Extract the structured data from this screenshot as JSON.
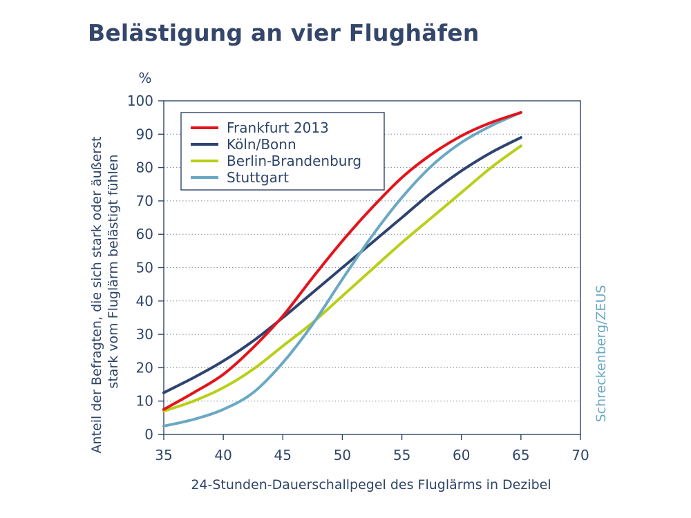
{
  "title": "Belästigung an vier Flughäfen",
  "credit": "Schreckenberg/ZEUS",
  "chart_data": {
    "type": "line",
    "title": "Belästigung an vier Flughäfen",
    "xlabel": "24-Stunden-Dauerschallpegel des Fluglärms in Dezibel",
    "ylabel": [
      "Anteil der Befragten, die sich stark oder äußerst",
      "stark vom Fluglärm belästigt fühlen"
    ],
    "yunit": "%",
    "xlim": [
      35,
      70
    ],
    "ylim": [
      0,
      100
    ],
    "xticks": [
      "35",
      "40",
      "45",
      "50",
      "55",
      "60",
      "65",
      "70"
    ],
    "yticks": [
      "0",
      "10",
      "20",
      "30",
      "40",
      "50",
      "60",
      "70",
      "80",
      "90",
      "100"
    ],
    "grid": "horizontal dotted",
    "legend_position": "top-left",
    "series": [
      {
        "name": "Frankfurt 2013",
        "color": "#e3141c",
        "points": [
          [
            35,
            7.5
          ],
          [
            37.5,
            12.5
          ],
          [
            40,
            18
          ],
          [
            42.5,
            26
          ],
          [
            45,
            35.5
          ],
          [
            47.5,
            47
          ],
          [
            50,
            58
          ],
          [
            52.5,
            68
          ],
          [
            55,
            77
          ],
          [
            57.5,
            84
          ],
          [
            60,
            89.5
          ],
          [
            62.5,
            93.5
          ],
          [
            65,
            96.5
          ]
        ]
      },
      {
        "name": "Köln/Bonn",
        "color": "#2f4370",
        "points": [
          [
            35,
            12.5
          ],
          [
            37.5,
            17
          ],
          [
            40,
            22
          ],
          [
            42.5,
            28
          ],
          [
            45,
            35
          ],
          [
            47.5,
            42.5
          ],
          [
            50,
            50
          ],
          [
            52.5,
            57.5
          ],
          [
            55,
            65
          ],
          [
            57.5,
            72.5
          ],
          [
            60,
            79
          ],
          [
            62.5,
            84.5
          ],
          [
            65,
            89
          ]
        ]
      },
      {
        "name": "Berlin-Brandenburg",
        "color": "#b9cf18",
        "points": [
          [
            35,
            7
          ],
          [
            37.5,
            10
          ],
          [
            40,
            14
          ],
          [
            42.5,
            19.5
          ],
          [
            45,
            26.5
          ],
          [
            47.5,
            33.5
          ],
          [
            50,
            41.5
          ],
          [
            52.5,
            49.5
          ],
          [
            55,
            57.5
          ],
          [
            57.5,
            65
          ],
          [
            60,
            72.5
          ],
          [
            62.5,
            80
          ],
          [
            65,
            86.5
          ]
        ]
      },
      {
        "name": "Stuttgart",
        "color": "#6aa8c4",
        "points": [
          [
            35,
            2.5
          ],
          [
            37.5,
            4.5
          ],
          [
            40,
            7.5
          ],
          [
            42.5,
            12.5
          ],
          [
            45,
            21.5
          ],
          [
            47.5,
            33
          ],
          [
            50,
            46.5
          ],
          [
            52.5,
            59.5
          ],
          [
            55,
            71
          ],
          [
            57.5,
            80.5
          ],
          [
            60,
            87.5
          ],
          [
            62.5,
            92.5
          ],
          [
            65,
            96.5
          ]
        ]
      }
    ]
  }
}
